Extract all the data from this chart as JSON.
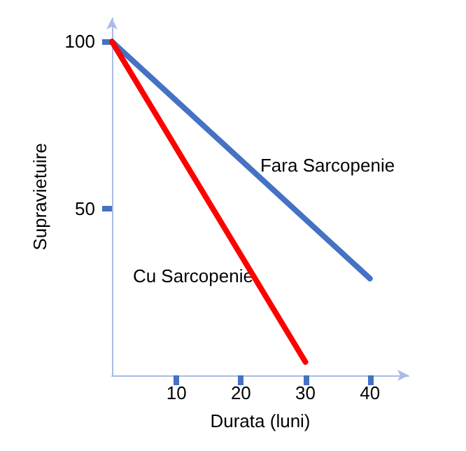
{
  "chart_data": {
    "type": "line",
    "xlabel": "Durata (luni)",
    "ylabel": "Supravietuire",
    "xlim": [
      0,
      46
    ],
    "ylim": [
      0,
      107
    ],
    "xticks": [
      10,
      20,
      30,
      40
    ],
    "yticks": [
      50,
      100
    ],
    "grid": false,
    "legend": false,
    "marker": "none",
    "line_style": "solid",
    "series": [
      {
        "name": "Fara Sarcopenie",
        "color": "#4472c4",
        "x": [
          0,
          40
        ],
        "values": [
          100,
          29
        ]
      },
      {
        "name": "Cu Sarcopenie",
        "color": "#ff0000",
        "x": [
          0,
          30
        ],
        "values": [
          100,
          4
        ]
      }
    ]
  }
}
